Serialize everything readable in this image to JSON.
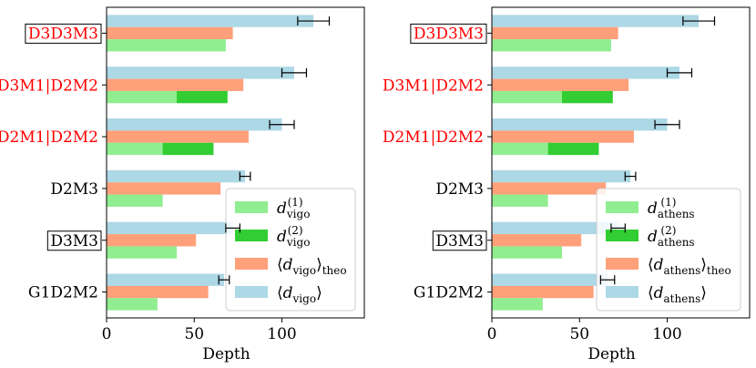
{
  "chart_data": [
    {
      "type": "bar",
      "orientation": "horizontal",
      "categories": [
        "G1D2M2",
        "D3M3",
        "D2M3",
        "D2M1|D2M2",
        "D3M1|D2M2",
        "D3D3M3"
      ],
      "category_colors": [
        "#000000",
        "#000000",
        "#000000",
        "#ff0000",
        "#ff0000",
        "#ff0000"
      ],
      "boxed_categories": [
        "D3M3",
        "D3D3M3"
      ],
      "xlabel": "Depth",
      "xlim": [
        0,
        147
      ],
      "xticks": [
        0,
        50,
        100
      ],
      "grid": false,
      "legend": "lower-right",
      "series": [
        {
          "name": "d_vigo^(1)",
          "legend_base": "d",
          "legend_sub": "vigo",
          "legend_sup": "(1)",
          "role": "d1",
          "color": "#90ee90",
          "values": [
            29,
            40,
            32,
            32,
            40,
            68
          ]
        },
        {
          "name": "d_vigo^(2)",
          "legend_base": "d",
          "legend_sub": "vigo",
          "legend_sup": "(2)",
          "role": "d2",
          "color": "#32cd32",
          "values": [
            0,
            0,
            0,
            29,
            29,
            0
          ]
        },
        {
          "name": "⟨d_vigo⟩_theo",
          "legend_base": "d",
          "legend_sub": "vigo",
          "legend_after": "theo",
          "role": "theo",
          "color": "#ffa07a",
          "values": [
            58,
            51,
            65,
            81,
            78,
            72
          ]
        },
        {
          "name": "⟨d_vigo⟩",
          "legend_base": "d",
          "legend_sub": "vigo",
          "role": "mean",
          "color": "#add8e6",
          "values": [
            67,
            72,
            79,
            100,
            107,
            118
          ],
          "errors": [
            3,
            4,
            3,
            7,
            7,
            9
          ]
        }
      ]
    },
    {
      "type": "bar",
      "orientation": "horizontal",
      "categories": [
        "G1D2M2",
        "D3M3",
        "D2M3",
        "D2M1|D2M2",
        "D3M1|D2M2",
        "D3D3M3"
      ],
      "category_colors": [
        "#000000",
        "#000000",
        "#000000",
        "#ff0000",
        "#ff0000",
        "#ff0000"
      ],
      "boxed_categories": [
        "D3M3",
        "D3D3M3"
      ],
      "xlabel": "Depth",
      "xlim": [
        0,
        147
      ],
      "xticks": [
        0,
        50,
        100
      ],
      "grid": false,
      "legend": "lower-right",
      "series": [
        {
          "name": "d_athens^(1)",
          "legend_base": "d",
          "legend_sub": "athens",
          "legend_sup": "(1)",
          "role": "d1",
          "color": "#90ee90",
          "values": [
            29,
            40,
            32,
            32,
            40,
            68
          ]
        },
        {
          "name": "d_athens^(2)",
          "legend_base": "d",
          "legend_sub": "athens",
          "legend_sup": "(2)",
          "role": "d2",
          "color": "#32cd32",
          "values": [
            0,
            0,
            0,
            29,
            29,
            0
          ]
        },
        {
          "name": "⟨d_athens⟩_theo",
          "legend_base": "d",
          "legend_sub": "athens",
          "legend_after": "theo",
          "role": "theo",
          "color": "#ffa07a",
          "values": [
            58,
            51,
            65,
            81,
            78,
            72
          ]
        },
        {
          "name": "⟨d_athens⟩",
          "legend_base": "d",
          "legend_sub": "athens",
          "role": "mean",
          "color": "#add8e6",
          "values": [
            66,
            72,
            79,
            100,
            107,
            118
          ],
          "errors": [
            4,
            4,
            3,
            7,
            7,
            9
          ]
        }
      ]
    }
  ]
}
